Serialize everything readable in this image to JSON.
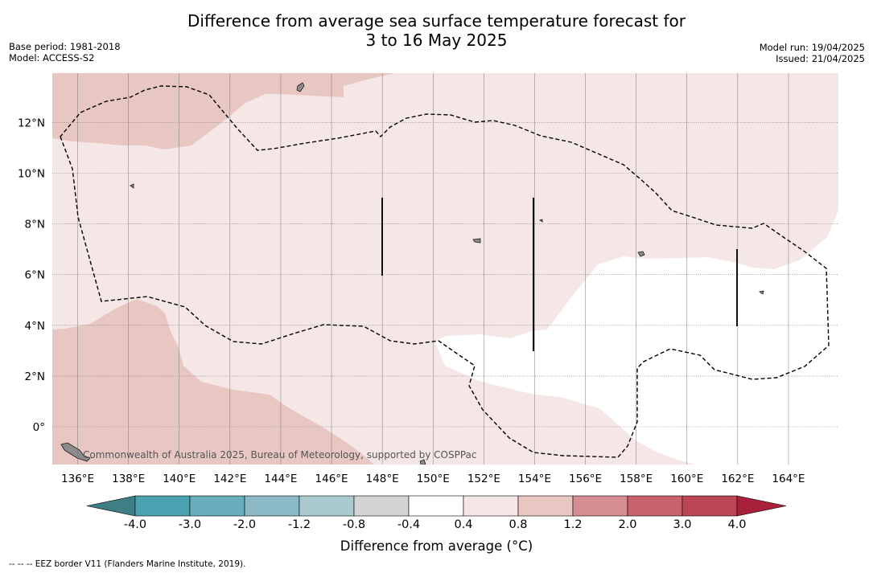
{
  "title": {
    "line1": "Difference from average sea surface temperature forecast for",
    "line2": "3 to 16 May 2025"
  },
  "meta_left": {
    "base_period": "Base period: 1981-2018",
    "model": "Model: ACCESS-S2"
  },
  "meta_right": {
    "model_run": "Model run: 19/04/2025",
    "issued": "Issued: 21/04/2025"
  },
  "map": {
    "lon_labels": [
      "136°E",
      "138°E",
      "140°E",
      "142°E",
      "144°E",
      "146°E",
      "148°E",
      "150°E",
      "152°E",
      "154°E",
      "156°E",
      "158°E",
      "160°E",
      "162°E",
      "164°E"
    ],
    "lat_labels": [
      "12°N",
      "10°N",
      "8°N",
      "6°N",
      "4°N",
      "2°N",
      "0°"
    ],
    "credit": "Commonwealth of Australia 2025, Bureau of Meteorology, supported by COSPPac",
    "colors": {
      "band_0_4_0_8": "#f4e7e6",
      "band_0_8_1_2": "#e8c7c3",
      "neutral": "#ffffff",
      "land": "#8c8c8c"
    }
  },
  "colorbar": {
    "ticks": [
      "-4.0",
      "-3.0",
      "-2.0",
      "-1.2",
      "-0.8",
      "-0.4",
      "0.4",
      "0.8",
      "1.2",
      "2.0",
      "3.0",
      "4.0"
    ],
    "colors": [
      "#4aa2b1",
      "#6aadbd",
      "#8bbac6",
      "#a9cbcf",
      "#d4d4d4",
      "#ffffff",
      "#f4e7e6",
      "#e8c7c3",
      "#d58d93",
      "#c8636c",
      "#bd4655"
    ],
    "extend_low": "#3e7f86",
    "extend_high": "#a8203a",
    "label": "Difference from average (°C)"
  },
  "footnote": "--  --  -- EEZ border V11 (Flanders Marine Institute, 2019)."
}
